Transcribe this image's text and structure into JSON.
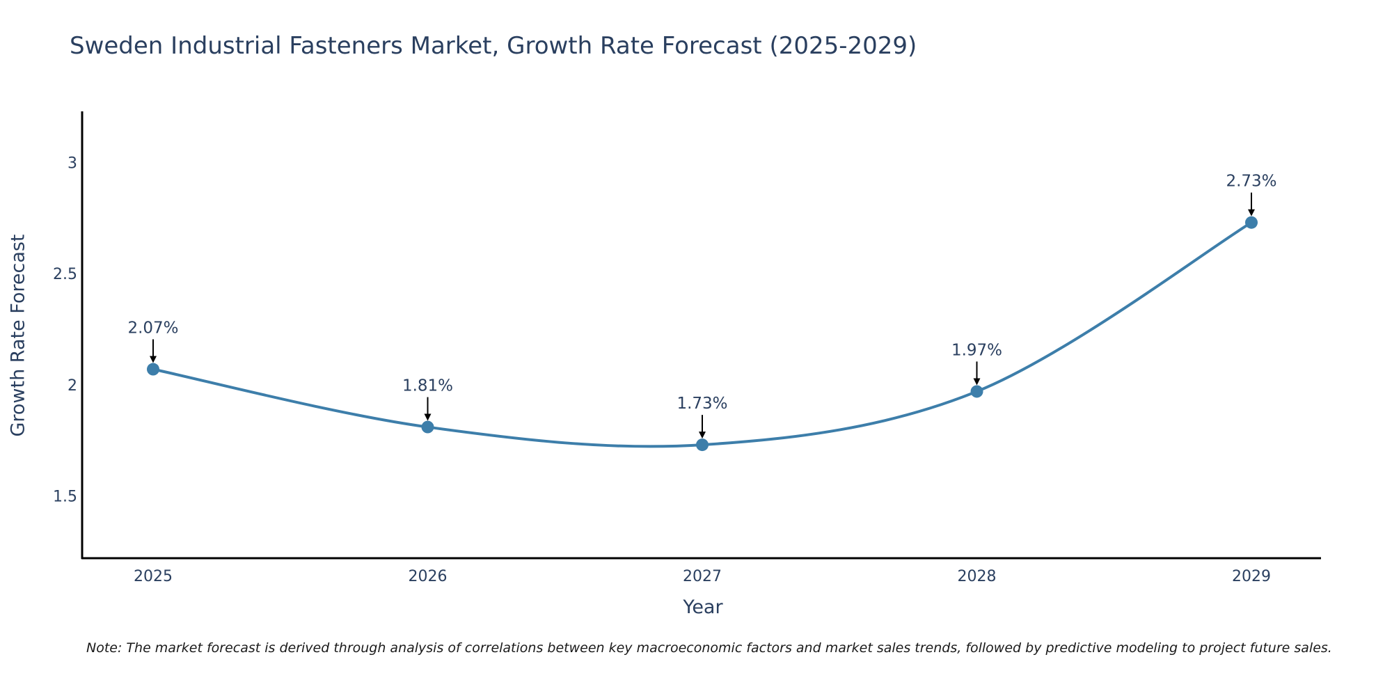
{
  "chart_data": {
    "type": "line",
    "title": "Sweden Industrial Fasteners Market, Growth Rate Forecast (2025-2029)",
    "xlabel": "Year",
    "ylabel": "Growth Rate Forecast",
    "categories": [
      "2025",
      "2026",
      "2027",
      "2028",
      "2029"
    ],
    "series": [
      {
        "name": "Growth Rate Forecast",
        "values": [
          2.07,
          1.81,
          1.73,
          1.97,
          2.73
        ],
        "color": "#3d7eaa",
        "line_shape": "spline"
      }
    ],
    "data_labels": [
      "2.07%",
      "1.81%",
      "1.73%",
      "1.97%",
      "2.73%"
    ],
    "y_ticks": [
      1.5,
      2,
      2.5,
      3
    ],
    "y_tick_labels": [
      "1.5",
      "2",
      "2.5",
      "3"
    ],
    "ylim": [
      1.22,
      3.23
    ],
    "grid": false,
    "legend": "none",
    "note": "Note: The market forecast is derived through analysis of correlations between key macroeconomic factors and market sales trends, followed by predictive modeling to project future sales."
  }
}
